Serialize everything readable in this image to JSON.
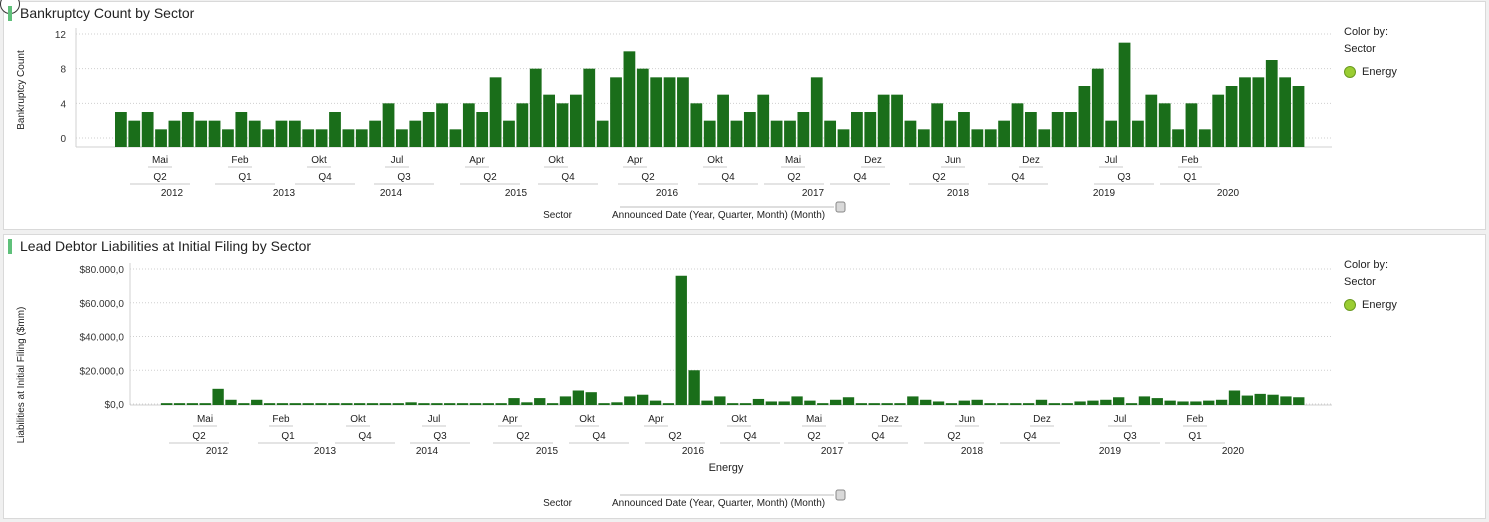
{
  "colors": {
    "bar": "#1a6e1a",
    "legend_dot": "#9acd32",
    "title_accent": "#5fc07a"
  },
  "charts": [
    {
      "title": "Bankruptcy Count by Sector",
      "ylabel": "Bankruptcy Count",
      "legend": {
        "heading1": "Color by:",
        "heading2": "Sector",
        "item": "Energy"
      },
      "footer": {
        "sector": "Sector",
        "axis_desc": "Announced Date (Year, Quarter, Month) (Month)"
      }
    },
    {
      "title": "Lead Debtor Liabilities at Initial Filing by Sector",
      "ylabel": "Liabilities at Initial Filing ($mm)",
      "xlabel": "Energy",
      "legend": {
        "heading1": "Color by:",
        "heading2": "Sector",
        "item": "Energy"
      },
      "footer": {
        "sector": "Sector",
        "axis_desc": "Announced Date (Year, Quarter, Month) (Month)"
      }
    }
  ],
  "chart_data": [
    {
      "type": "bar",
      "title": "Bankruptcy Count by Sector",
      "ylabel": "Bankruptcy Count",
      "series": [
        {
          "name": "Energy",
          "values": [
            3,
            2,
            3,
            1,
            2,
            3,
            2,
            2,
            1,
            3,
            2,
            1,
            2,
            2,
            1,
            1,
            3,
            1,
            1,
            2,
            4,
            1,
            2,
            3,
            4,
            1,
            4,
            3,
            7,
            2,
            4,
            8,
            5,
            4,
            5,
            8,
            2,
            7,
            10,
            8,
            7,
            7,
            7,
            4,
            2,
            5,
            2,
            3,
            5,
            2,
            2,
            3,
            7,
            2,
            1,
            3,
            3,
            5,
            5,
            2,
            1,
            4,
            2,
            3,
            1,
            1,
            2,
            4,
            3,
            1,
            3,
            3,
            6,
            8,
            2,
            11,
            2,
            5,
            4,
            1,
            4,
            1,
            5,
            6,
            7,
            7,
            9,
            7,
            6
          ]
        }
      ],
      "yticks": [
        0,
        4,
        8,
        12
      ],
      "ylim": [
        0,
        12
      ],
      "month_labels": [
        "Mai",
        "Feb",
        "Okt",
        "Jul",
        "Apr",
        "Okt",
        "Apr",
        "Okt",
        "Mai",
        "Dez",
        "Jun",
        "Dez",
        "Jul",
        "Feb"
      ],
      "quarter_labels": [
        "Q2",
        "Q1",
        "Q4",
        "Q3",
        "Q2",
        "Q4",
        "Q2",
        "Q4",
        "Q2",
        "Q4",
        "Q2",
        "Q4",
        "Q3",
        "Q1"
      ],
      "year_labels": [
        "2012",
        "2013",
        "2014",
        "2015",
        "2016",
        "2017",
        "2018",
        "2019",
        "2020"
      ]
    },
    {
      "type": "bar",
      "title": "Lead Debtor Liabilities at Initial Filing by Sector",
      "ylabel": "Liabilities at Initial Filing ($mm)",
      "xlabel": "Energy",
      "series": [
        {
          "name": "Energy",
          "values": [
            500,
            500,
            500,
            500,
            9000,
            2500,
            500,
            2500,
            500,
            500,
            500,
            500,
            500,
            500,
            500,
            500,
            500,
            500,
            500,
            1000,
            500,
            500,
            500,
            500,
            500,
            500,
            500,
            3500,
            1000,
            3500,
            500,
            4500,
            8000,
            7000,
            500,
            1000,
            4500,
            5500,
            2000,
            500,
            76000,
            20000,
            2000,
            4500,
            500,
            500,
            3000,
            1500,
            1500,
            4500,
            2000,
            500,
            2500,
            4000,
            500,
            500,
            500,
            500,
            4500,
            2500,
            1500,
            500,
            2000,
            2500,
            500,
            500,
            500,
            500,
            2500,
            500,
            500,
            1500,
            2000,
            2500,
            4000,
            500,
            4500,
            3500,
            2000,
            1500,
            1500,
            2000,
            2500,
            8000,
            5000,
            6000,
            5500,
            4500,
            4000
          ]
        }
      ],
      "yticks": [
        "$0,0",
        "$20.000,0",
        "$40.000,0",
        "$60.000,0",
        "$80.000,0"
      ],
      "ytick_values": [
        0,
        20000,
        40000,
        60000,
        80000
      ],
      "ylim": [
        0,
        80000
      ],
      "month_labels": [
        "Mai",
        "Feb",
        "Okt",
        "Jul",
        "Apr",
        "Okt",
        "Apr",
        "Okt",
        "Mai",
        "Dez",
        "Jun",
        "Dez",
        "Jul",
        "Feb"
      ],
      "quarter_labels": [
        "Q2",
        "Q1",
        "Q4",
        "Q3",
        "Q2",
        "Q4",
        "Q2",
        "Q4",
        "Q2",
        "Q4",
        "Q2",
        "Q4",
        "Q3",
        "Q1"
      ],
      "year_labels": [
        "2012",
        "2013",
        "2014",
        "2015",
        "2016",
        "2017",
        "2018",
        "2019",
        "2020"
      ]
    }
  ]
}
